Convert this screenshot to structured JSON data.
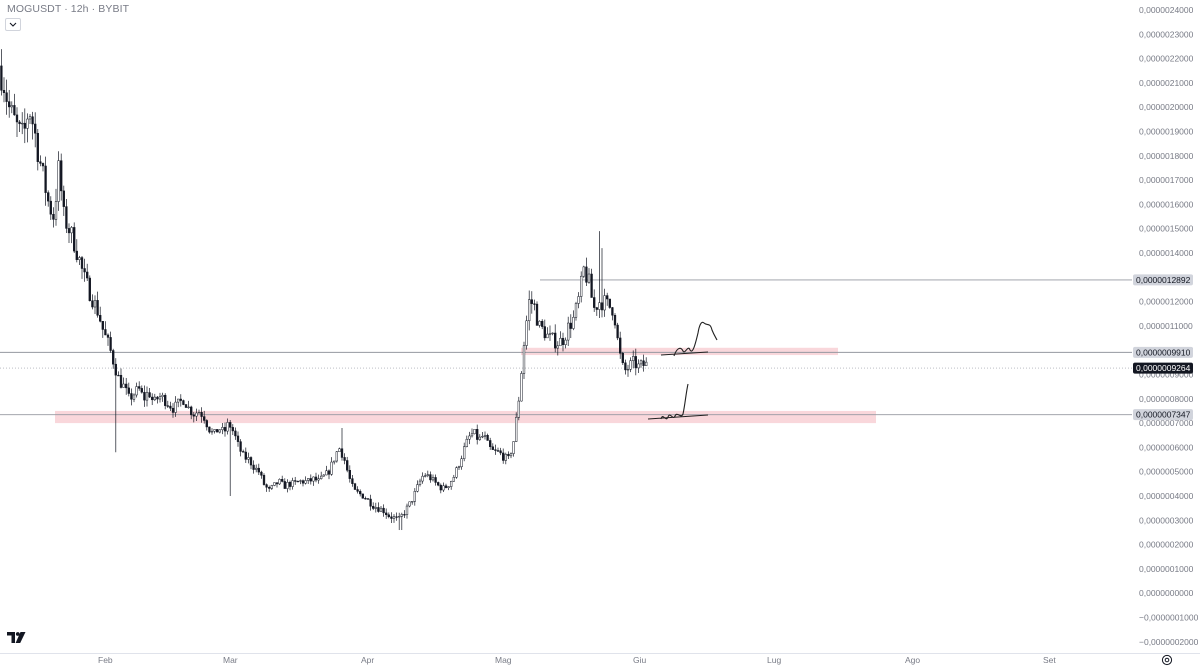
{
  "header": {
    "symbol": "MOGUSDT",
    "interval": "12h",
    "exchange": "BYBIT",
    "title_text": "MOGUSDT · 12h · BYBIT"
  },
  "icons": {
    "collapse": "chevron-down-icon",
    "logo": "tradingview-logo",
    "settings": "gear-icon"
  },
  "colors": {
    "candle": "#131722",
    "zone_fill": "#f7c9cf",
    "level_line": "#9598a1",
    "current_price_bg": "#131722",
    "level_label_bg": "#d1d4dc"
  },
  "chart_data": {
    "type": "candlestick",
    "symbol": "MOGUSDT",
    "interval": "12h",
    "exchange": "BYBIT",
    "y_range": [
      -2e-07,
      2.4e-06
    ],
    "y_ticks": [
      "0,0000024000",
      "0,0000023000",
      "0,0000022000",
      "0,0000021000",
      "0,0000020000",
      "0,0000019000",
      "0,0000018000",
      "0,0000017000",
      "0,0000016000",
      "0,0000015000",
      "0,0000014000",
      "0,0000013000",
      "0,0000012000",
      "0,0000011000",
      "0,0000010000",
      "0,0000009000",
      "0,0000008000",
      "0,0000007000",
      "0,0000006000",
      "0,0000005000",
      "0,0000004000",
      "0,0000003000",
      "0,0000002000",
      "0,0000001000",
      "0,0000000000",
      "−0,0000001000",
      "−0,0000002000"
    ],
    "x_labels": [
      "Feb",
      "Mar",
      "Apr",
      "Mag",
      "Giu",
      "Lug",
      "Ago",
      "Set"
    ],
    "price_labels": [
      {
        "text": "0,0000012892",
        "value": 1.2892e-06,
        "kind": "level"
      },
      {
        "text": "0,0000009910",
        "value": 9.91e-07,
        "kind": "level"
      },
      {
        "text": "0,0000009264",
        "value": 9.264e-07,
        "kind": "current"
      },
      {
        "text": "0,0000007347",
        "value": 7.347e-07,
        "kind": "level"
      }
    ],
    "zones": [
      {
        "name": "resistance-zone",
        "low": 9.8e-07,
        "high": 1.01e-06
      },
      {
        "name": "support-zone",
        "low": 7e-07,
        "high": 7.5e-07
      }
    ],
    "path_x": [
      0,
      5,
      10,
      15,
      20,
      25,
      30,
      35,
      40,
      45,
      50,
      55,
      60,
      65,
      70,
      75,
      80,
      85,
      90,
      95,
      100,
      105,
      110,
      115,
      120,
      125,
      130,
      135,
      140,
      145,
      150,
      155,
      160,
      165,
      170,
      175,
      180,
      185,
      190,
      195,
      200,
      205,
      210,
      215,
      220,
      225,
      230,
      235,
      240,
      245,
      250,
      255,
      260,
      265,
      270,
      275,
      280,
      285,
      290,
      295,
      300,
      305,
      310,
      315,
      320,
      325,
      330,
      335,
      340,
      345,
      350,
      355,
      360,
      365,
      370,
      375,
      380,
      385,
      390,
      395,
      400,
      405,
      410,
      415,
      420,
      425,
      430,
      435,
      440,
      445,
      450,
      455,
      460,
      465,
      470,
      475,
      480,
      485,
      490,
      495,
      500,
      505,
      510,
      515,
      520,
      525,
      530,
      535,
      540,
      545,
      550,
      555,
      560,
      565,
      570,
      575,
      580,
      585,
      590,
      595,
      600,
      605,
      610,
      615,
      620,
      625,
      630,
      635,
      640,
      645
    ],
    "path_y": [
      2.17,
      2.1,
      2.0,
      1.95,
      1.9,
      1.88,
      2.0,
      1.92,
      1.8,
      1.7,
      1.6,
      1.55,
      1.75,
      1.55,
      1.5,
      1.45,
      1.38,
      1.3,
      1.25,
      1.2,
      1.15,
      1.07,
      1.02,
      0.95,
      0.88,
      0.85,
      0.8,
      0.82,
      0.84,
      0.8,
      0.83,
      0.78,
      0.81,
      0.8,
      0.78,
      0.76,
      0.78,
      0.8,
      0.76,
      0.74,
      0.75,
      0.73,
      0.68,
      0.65,
      0.68,
      0.66,
      0.7,
      0.66,
      0.6,
      0.56,
      0.55,
      0.52,
      0.5,
      0.45,
      0.42,
      0.44,
      0.46,
      0.44,
      0.45,
      0.45,
      0.46,
      0.46,
      0.46,
      0.47,
      0.46,
      0.48,
      0.5,
      0.55,
      0.6,
      0.56,
      0.48,
      0.42,
      0.41,
      0.4,
      0.38,
      0.36,
      0.35,
      0.34,
      0.32,
      0.31,
      0.3,
      0.33,
      0.36,
      0.4,
      0.45,
      0.49,
      0.48,
      0.46,
      0.44,
      0.43,
      0.45,
      0.48,
      0.53,
      0.59,
      0.64,
      0.66,
      0.63,
      0.65,
      0.6,
      0.58,
      0.58,
      0.56,
      0.55,
      0.63,
      0.8,
      1.02,
      1.2,
      1.19,
      1.1,
      1.08,
      1.05,
      1.04,
      1.03,
      1.05,
      1.1,
      1.13,
      1.21,
      1.33,
      1.28,
      1.17,
      1.2,
      1.2,
      1.18,
      1.17,
      1.0,
      0.91,
      0.93,
      0.95,
      0.93,
      0.94
    ]
  }
}
